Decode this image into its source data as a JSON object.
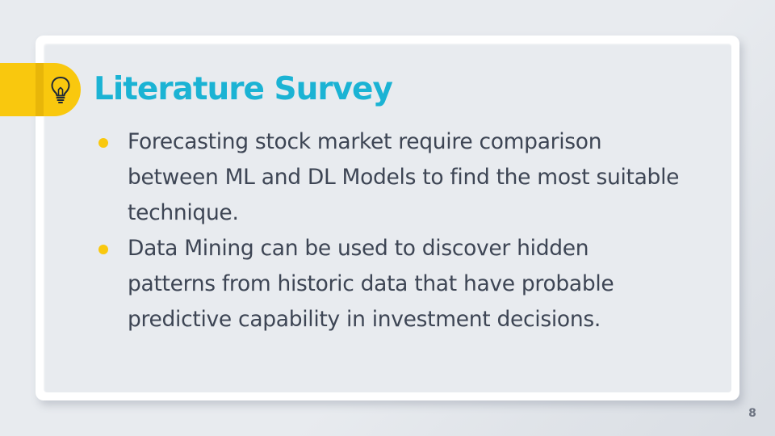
{
  "slide": {
    "title": "Literature Survey",
    "bullets": [
      "Forecasting stock market require comparison between ML and DL Models to find the most suitable technique.",
      "Data Mining can be used to discover hidden patterns from historic data that have probable predictive capability in investment decisions."
    ],
    "page_number": "8"
  },
  "icons": {
    "title_icon": "lightbulb-icon",
    "bullet_marker": "bullet-dot"
  },
  "colors": {
    "background": "#e8ebef",
    "title": "#1bb3d4",
    "accent": "#f9c80e",
    "body_text": "#3d4554",
    "page_number": "#6b7280"
  }
}
